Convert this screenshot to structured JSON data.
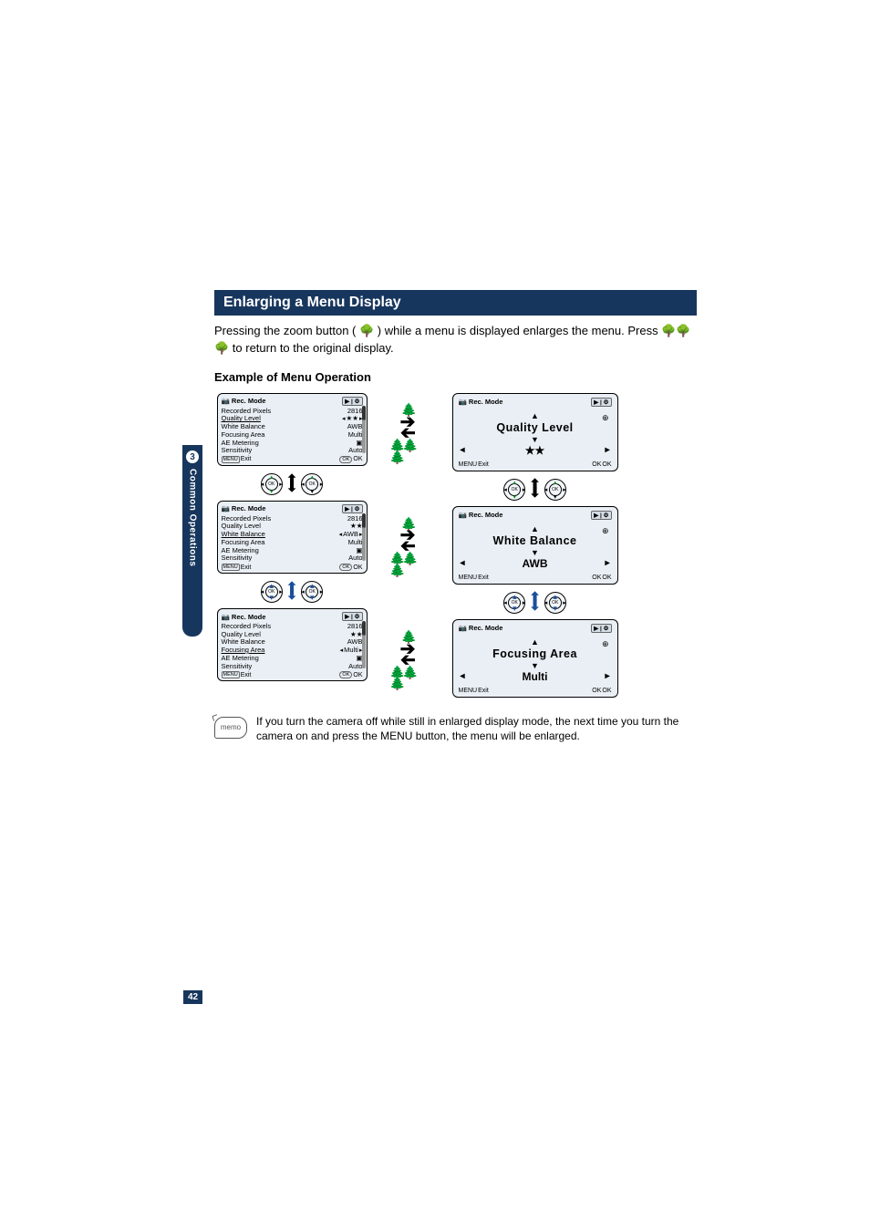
{
  "section_header": "Enlarging a Menu Display",
  "intro_text_1": "Pressing the zoom button ( 🌳 ) while a menu is displayed enlarges the menu. Press 🌳🌳🌳 to return to the original display.",
  "subheading": "Example of Menu Operation",
  "side_tab_number": "3",
  "side_tab_text": "Common Operations",
  "page_number": "42",
  "small_menu": {
    "mode_title": "Rec. Mode",
    "tab_icons": "▶ | ⚙",
    "rows": [
      {
        "label": "Recorded Pixels",
        "value": "2816"
      },
      {
        "label": "Quality Level",
        "value": "★★"
      },
      {
        "label": "White Balance",
        "value": "AWB"
      },
      {
        "label": "Focusing Area",
        "value": "Multi"
      },
      {
        "label": "AE Metering",
        "value": "▣"
      },
      {
        "label": "Sensitivity",
        "value": "Auto"
      }
    ],
    "footer_exit": "Exit",
    "footer_ok": "OK"
  },
  "large_menu": {
    "mode_title": "Rec. Mode",
    "tab_icons": "▶ | ⚙",
    "zoom_symbol": "⊕",
    "footer_exit": "Exit",
    "footer_ok": "OK",
    "panels": [
      {
        "title": "Quality Level",
        "value": "★★"
      },
      {
        "title": "White Balance",
        "value": "AWB"
      },
      {
        "title": "Focusing Area",
        "value": "Multi"
      }
    ]
  },
  "active_index_per_state": [
    1,
    2,
    3
  ],
  "memo_label": "memo",
  "memo_text": "If you turn the camera off while still in enlarged display mode, the next time you turn the camera on and press the MENU button, the menu will be enlarged.",
  "colors": {
    "header_bg": "#17365d",
    "panel_bg": "#e9eff5",
    "blue_arrow": "#1b4f9c",
    "green_arrow": "#0a8a22"
  }
}
